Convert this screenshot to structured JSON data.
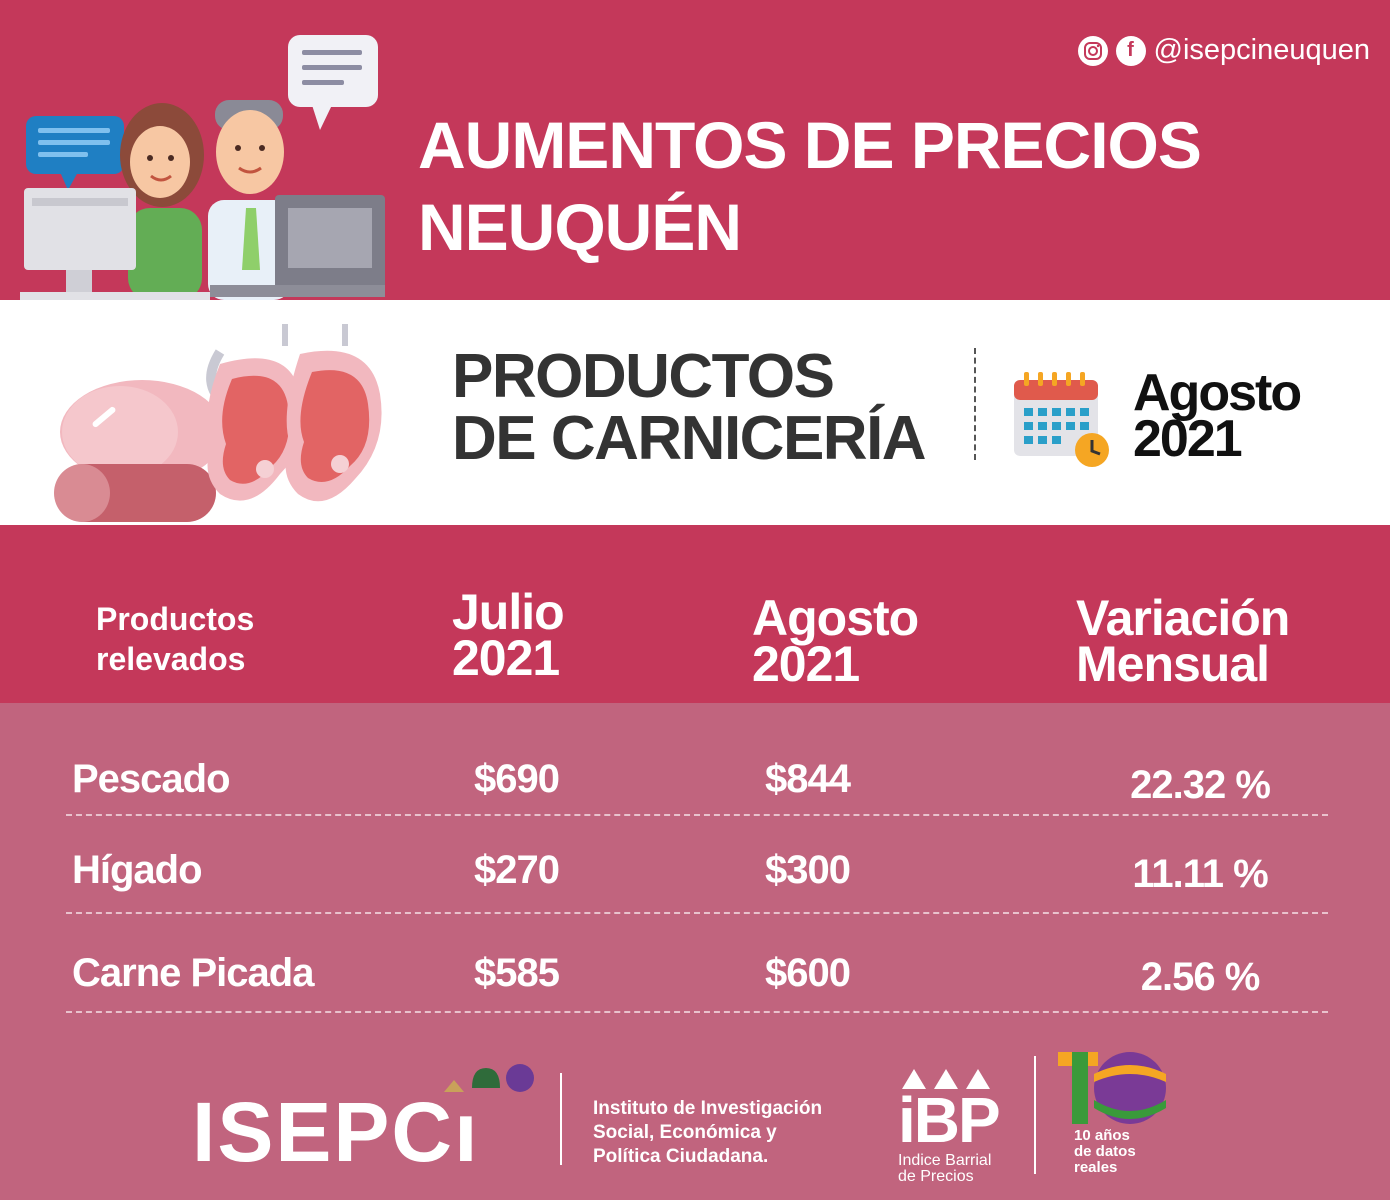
{
  "header": {
    "social_handle": "@isepcineuquen",
    "instagram_icon": "instagram-icon",
    "facebook_icon": "facebook-icon",
    "title_line1": "AUMENTOS DE PRECIOS",
    "title_line2": "NEUQUÉN"
  },
  "band": {
    "subtitle_line1": "PRODUCTOS",
    "subtitle_line2": "DE CARNICERÍA",
    "date_month": "Agosto",
    "date_year": "2021"
  },
  "table": {
    "headers": [
      {
        "line1": "Productos",
        "line2": "relevados"
      },
      {
        "line1": "Julio",
        "line2": "2021"
      },
      {
        "line1": "Agosto",
        "line2": "2021"
      },
      {
        "line1": "Variación",
        "line2": "Mensual"
      }
    ],
    "rows": [
      {
        "name": "Pescado",
        "julio": "$690",
        "agosto": "$844",
        "variacion": "22.32 %"
      },
      {
        "name": "Hígado",
        "julio": "$270",
        "agosto": "$300",
        "variacion": "11.11 %"
      },
      {
        "name": "Carne Picada",
        "julio": "$585",
        "agosto": "$600",
        "variacion": "2.56 %"
      }
    ]
  },
  "footer": {
    "isepci_logo": "ISEPCı",
    "institute_line1": "Instituto de Investigación",
    "institute_line2": "Social, Económica y",
    "institute_line3": "Política Ciudadana.",
    "ibp_logo": "iBP",
    "ibp_line1": "Indice Barrial",
    "ibp_line2": "de Precios",
    "anos_line1": "10 años",
    "anos_line2": "de datos",
    "anos_line3": "reales"
  },
  "colors": {
    "primary": "#c4385a",
    "row_bg": "#c1647e",
    "white": "#ffffff",
    "dark_text": "#333333"
  }
}
